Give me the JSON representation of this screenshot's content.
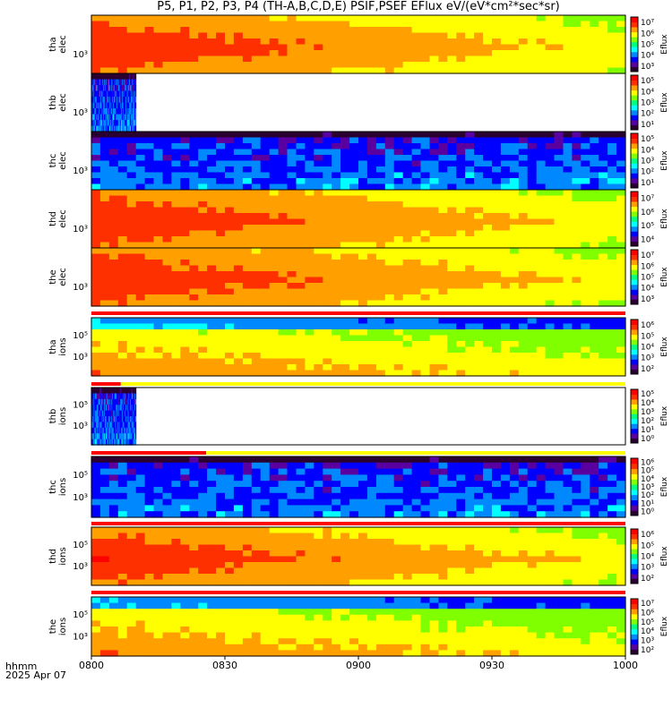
{
  "title": "P5, P1, P2, P3, P4 (TH-A,B,C,D,E) PSIF,PSEF EFlux eV/(eV*cm²*sec*sr)",
  "footer": {
    "hhmm": "hhmm",
    "date": "2025 Apr 07"
  },
  "colors": {
    "colormap": [
      "#2a0030",
      "#5a00a0",
      "#0000ff",
      "#0088ff",
      "#00ffff",
      "#00ff80",
      "#80ff00",
      "#ffff00",
      "#ffa000",
      "#ff3000",
      "#ff0000"
    ],
    "bar_red": "#ff0000",
    "bar_yellow": "#ffff00",
    "grid": "#000000"
  },
  "chart_data": {
    "type": "heatmap",
    "x_range": [
      "0800",
      "1000"
    ],
    "x_ticks": [
      "0800",
      "0830",
      "0900",
      "0930",
      "1000"
    ],
    "y_scale": "log",
    "panels": [
      {
        "ylabel": [
          "tha",
          "elec"
        ],
        "ytick": "10³",
        "cbar_label": "Eflux",
        "cbar_ticks": [
          "10³",
          "10⁴",
          "10⁵",
          "10⁶",
          "10⁷"
        ],
        "intensity": "high",
        "coverage_end": "1000"
      },
      {
        "ylabel": [
          "thb",
          "elec"
        ],
        "ytick": "10³",
        "cbar_label": "Eflux",
        "cbar_ticks": [
          "10¹",
          "10²",
          "10³",
          "10⁴",
          "10⁵"
        ],
        "intensity": "low",
        "coverage_end": "0810"
      },
      {
        "ylabel": [
          "thc",
          "elec"
        ],
        "ytick": "10³",
        "cbar_label": "Eflux",
        "cbar_ticks": [
          "10¹",
          "10²",
          "10³",
          "10⁴",
          "10⁵"
        ],
        "intensity": "low",
        "coverage_end": "1000"
      },
      {
        "ylabel": [
          "thd",
          "elec"
        ],
        "ytick": "10³",
        "cbar_label": "Eflux",
        "cbar_ticks": [
          "10⁴",
          "10⁵",
          "10⁶",
          "10⁷"
        ],
        "intensity": "high",
        "coverage_end": "1000"
      },
      {
        "ylabel": [
          "the",
          "elec"
        ],
        "ytick": "10³",
        "cbar_label": "Eflux",
        "cbar_ticks": [
          "10³",
          "10⁴",
          "10⁵",
          "10⁶",
          "10⁷"
        ],
        "intensity": "high",
        "coverage_end": "1000"
      },
      {
        "ylabel": [
          "tha",
          "ions"
        ],
        "ytick": "10³",
        "ytick2": "10⁵",
        "cbar_label": "Eflux",
        "cbar_ticks": [
          "10²",
          "10³",
          "10⁴",
          "10⁵",
          "10⁶"
        ],
        "intensity": "medium",
        "coverage_end": "1000"
      },
      {
        "ylabel": [
          "thb",
          "ions"
        ],
        "ytick": "10³",
        "ytick2": "10⁵",
        "cbar_label": "Eflux",
        "cbar_ticks": [
          "10⁰",
          "10¹",
          "10²",
          "10³",
          "10⁴",
          "10⁵"
        ],
        "intensity": "low",
        "coverage_end": "0810"
      },
      {
        "ylabel": [
          "thc",
          "ions"
        ],
        "ytick": "10³",
        "ytick2": "10⁵",
        "cbar_label": "Eflux",
        "cbar_ticks": [
          "10⁰",
          "10¹",
          "10²",
          "10³",
          "10⁴",
          "10⁵",
          "10⁶"
        ],
        "intensity": "low",
        "coverage_end": "1000"
      },
      {
        "ylabel": [
          "thd",
          "ions"
        ],
        "ytick": "10³",
        "ytick2": "10⁵",
        "cbar_label": "Eflux",
        "cbar_ticks": [
          "10²",
          "10³",
          "10⁴",
          "10⁵",
          "10⁶"
        ],
        "intensity": "high",
        "coverage_end": "1000"
      },
      {
        "ylabel": [
          "the",
          "ions"
        ],
        "ytick": "10³",
        "ytick2": "10⁵",
        "cbar_label": "Eflux",
        "cbar_ticks": [
          "10²",
          "10³",
          "10⁴",
          "10⁵",
          "10⁶",
          "10⁷"
        ],
        "intensity": "medium",
        "coverage_end": "1000"
      }
    ]
  }
}
